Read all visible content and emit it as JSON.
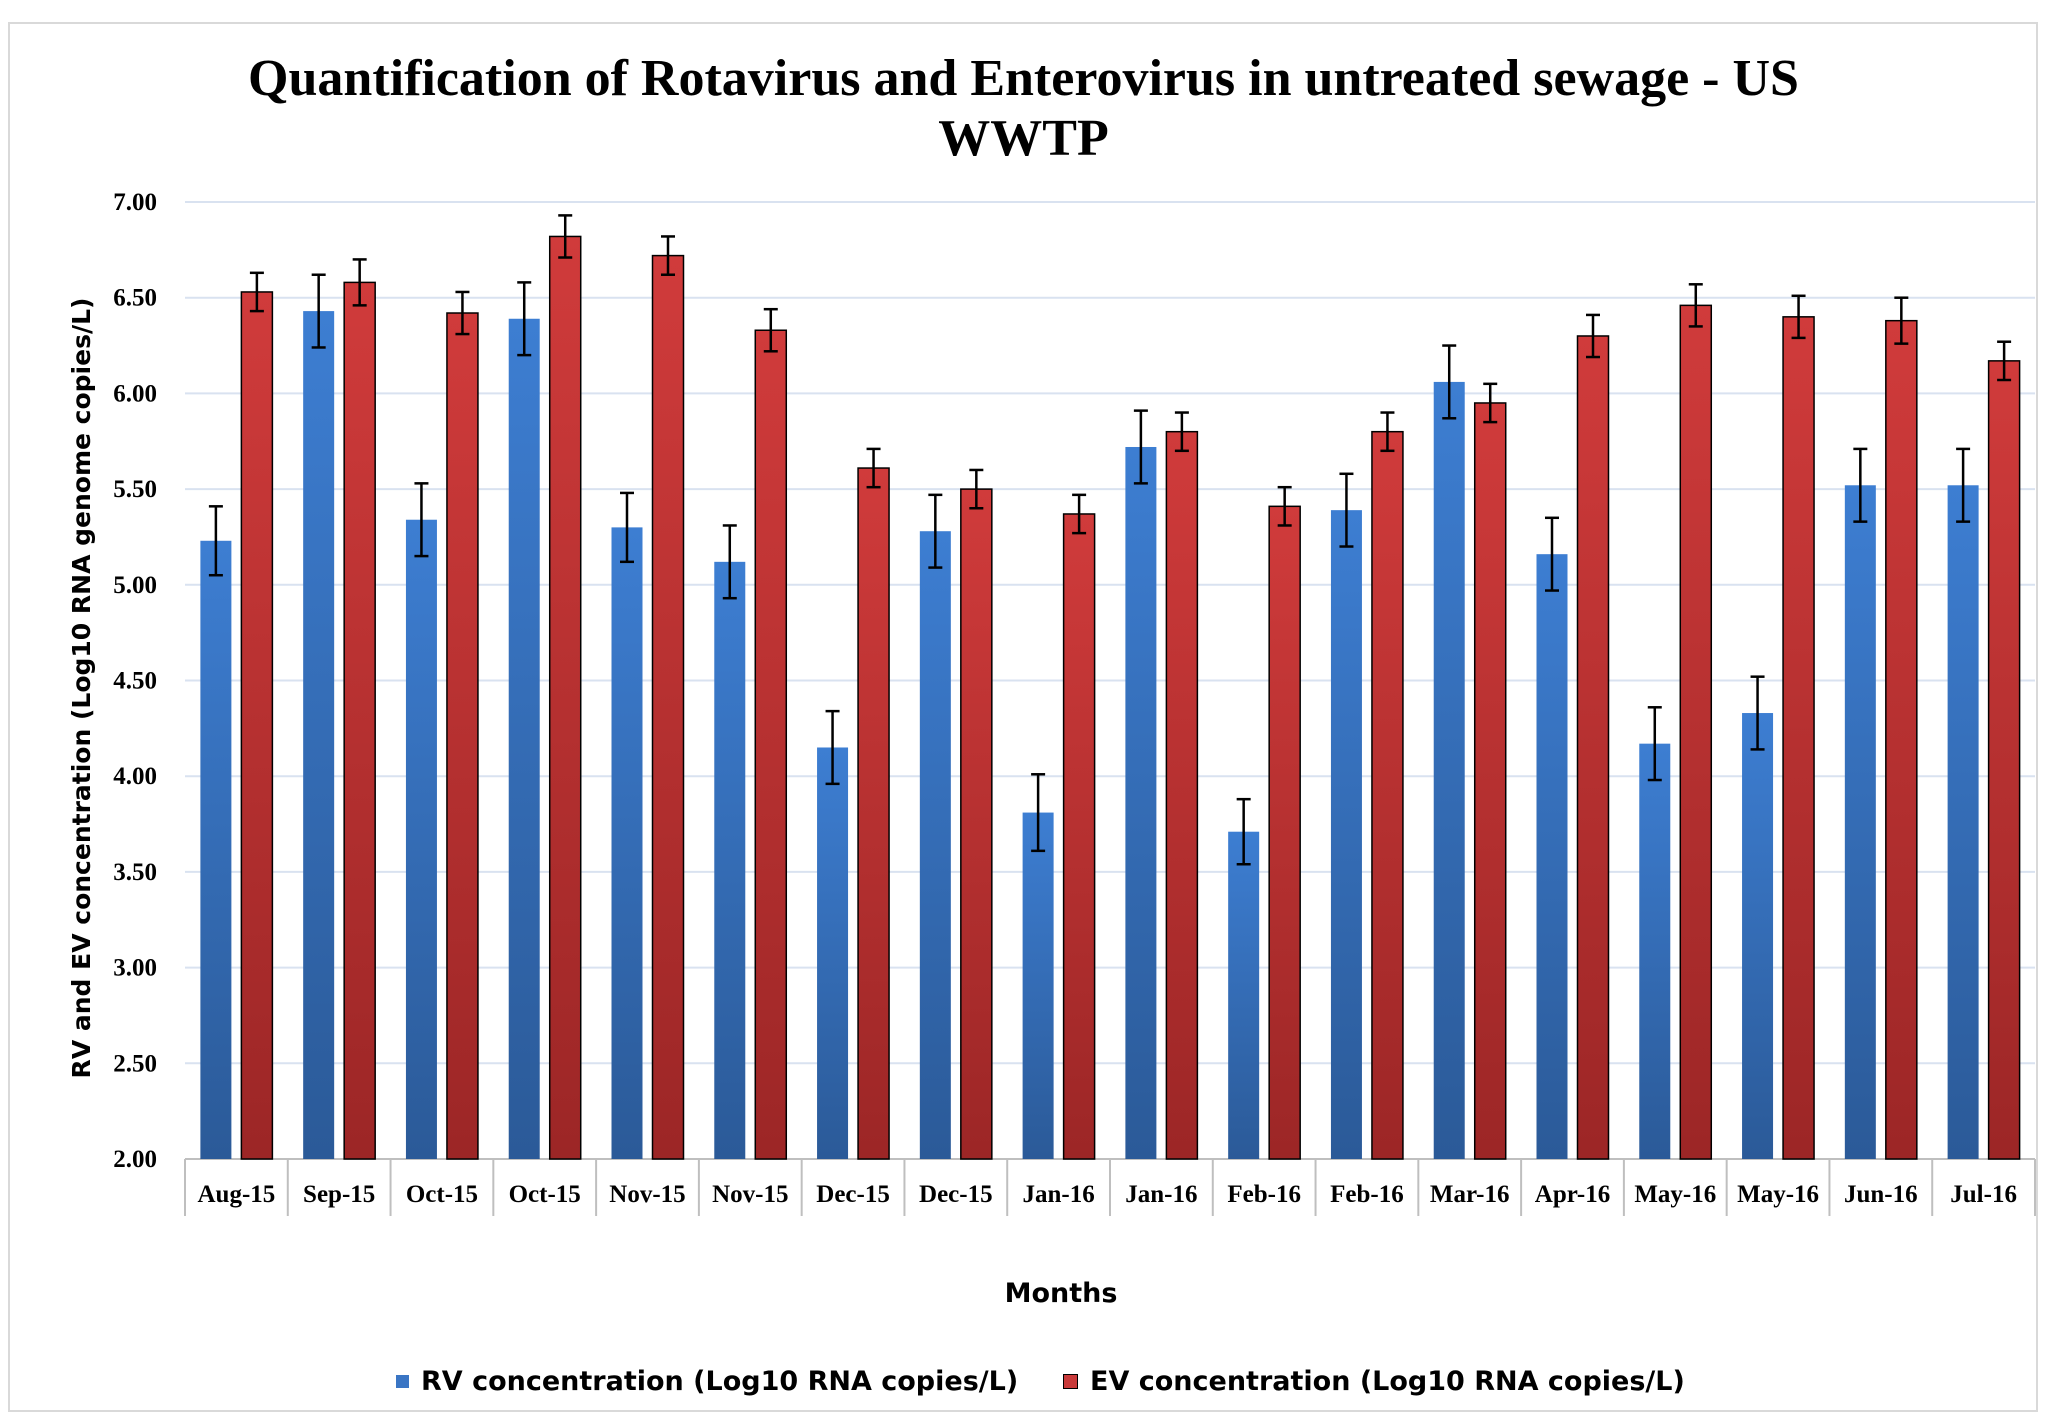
{
  "chart_data": {
    "type": "bar",
    "title": "Quantification of Rotavirus and Enterovirus in untreated sewage -  US WWTP",
    "title_lines": [
      "Quantification of Rotavirus and Enterovirus in untreated sewage -  US",
      "WWTP"
    ],
    "xlabel": "Months",
    "ylabel": "RV and EV concentration (Log10 RNA genome copies/L)",
    "ylim": [
      2.0,
      7.0
    ],
    "yticks": [
      "2.00",
      "2.50",
      "3.00",
      "3.50",
      "4.00",
      "4.50",
      "5.00",
      "5.50",
      "6.00",
      "6.50",
      "7.00"
    ],
    "grid": true,
    "legend_position": "bottom",
    "categories": [
      "Aug-15",
      "Sep-15",
      "Oct-15",
      "Oct-15",
      "Nov-15",
      "Nov-15",
      "Dec-15",
      "Dec-15",
      "Jan-16",
      "Jan-16",
      "Feb-16",
      "Feb-16",
      "Mar-16",
      "Apr-16",
      "May-16",
      "May-16",
      "Jun-16",
      "Jul-16"
    ],
    "series": [
      {
        "name": "RV concentration (Log10 RNA copies/L)",
        "color": "#3a75c4",
        "values": [
          5.23,
          6.43,
          5.34,
          6.39,
          5.3,
          5.12,
          4.15,
          5.28,
          3.81,
          5.72,
          3.71,
          5.39,
          6.06,
          5.16,
          4.17,
          4.33,
          5.52,
          5.52
        ],
        "errors": [
          0.18,
          0.19,
          0.19,
          0.19,
          0.18,
          0.19,
          0.19,
          0.19,
          0.2,
          0.19,
          0.17,
          0.19,
          0.19,
          0.19,
          0.19,
          0.19,
          0.19,
          0.19
        ]
      },
      {
        "name": "EV concentration (Log10 RNA copies/L)",
        "color": "#c93a3a",
        "values": [
          6.53,
          6.58,
          6.42,
          6.82,
          6.72,
          6.33,
          5.61,
          5.5,
          5.37,
          5.8,
          5.41,
          5.8,
          5.95,
          6.3,
          6.46,
          6.4,
          6.38,
          6.17
        ],
        "errors": [
          0.1,
          0.12,
          0.11,
          0.11,
          0.1,
          0.11,
          0.1,
          0.1,
          0.1,
          0.1,
          0.1,
          0.1,
          0.1,
          0.11,
          0.11,
          0.11,
          0.12,
          0.1
        ]
      }
    ]
  },
  "colors": {
    "rv": "#3a75c4",
    "ev": "#c93a3a",
    "gridline": "#d9e2f0",
    "axis": "#bfbfbf"
  }
}
